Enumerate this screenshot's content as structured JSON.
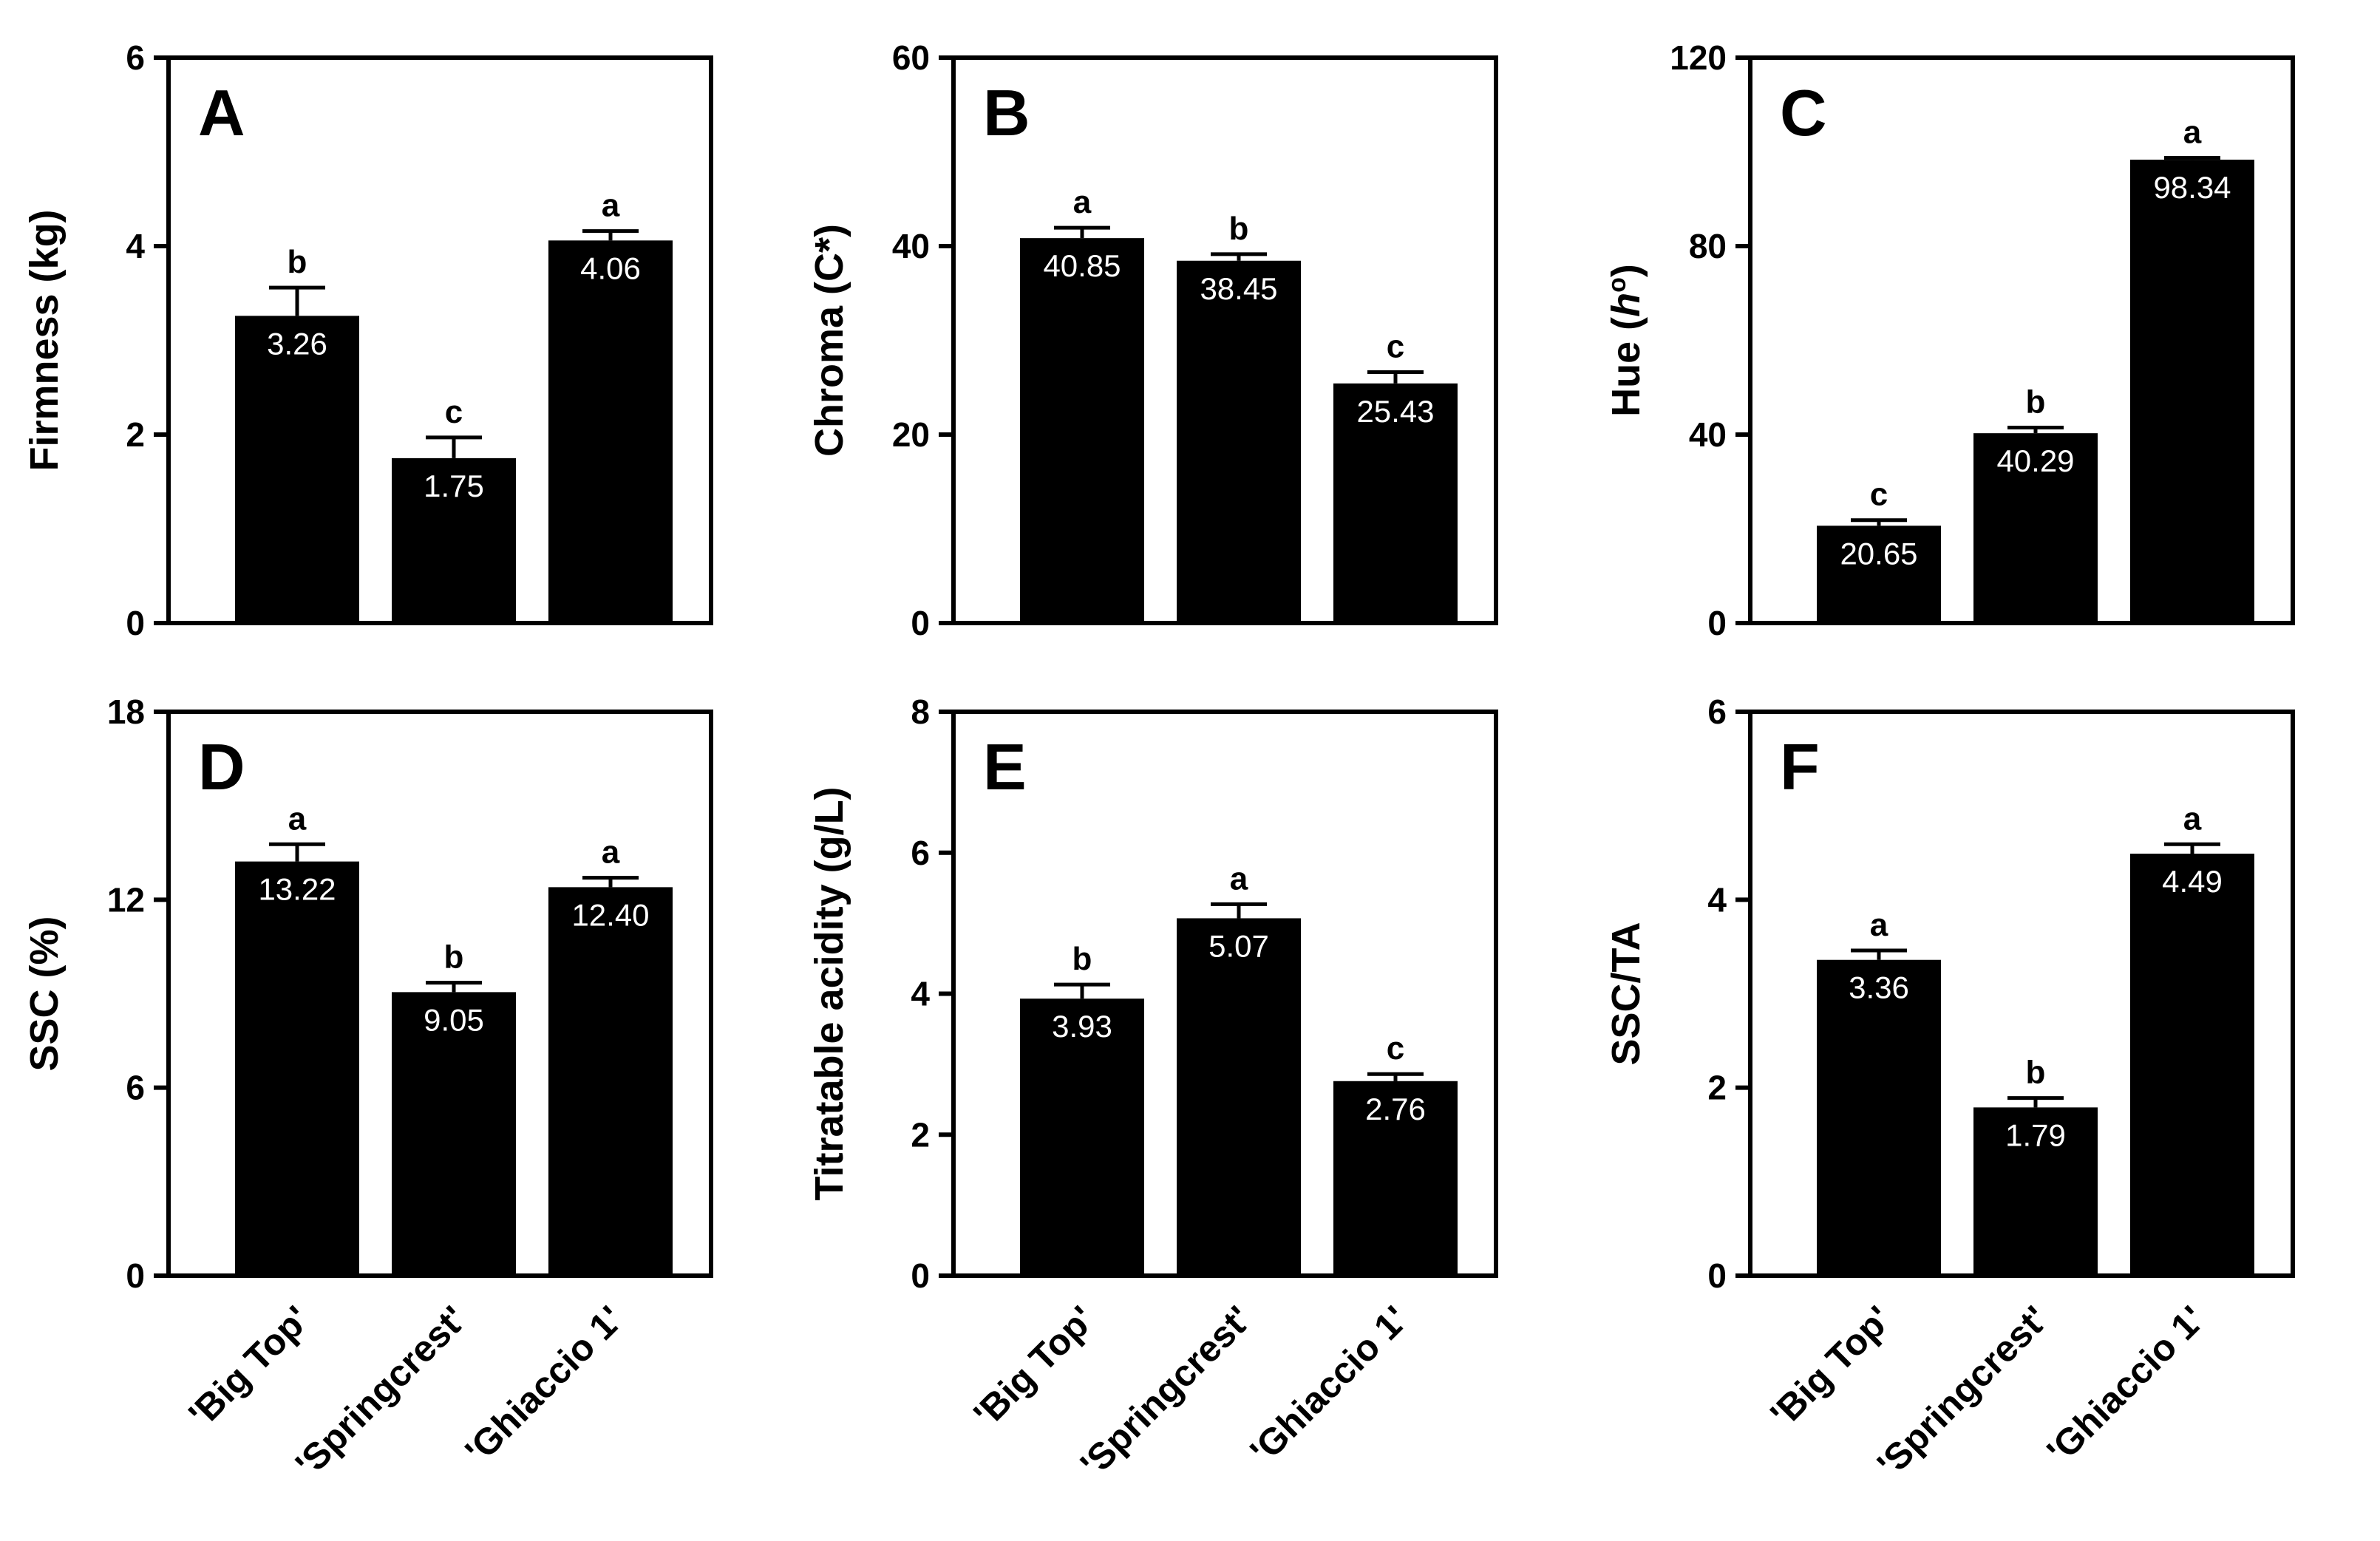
{
  "chart_data": [
    {
      "type": "bar",
      "panel": "A",
      "categories": [
        "'Big Top'",
        "'Springcrest'",
        "'Ghiaccio 1'"
      ],
      "values": [
        3.26,
        1.75,
        4.06
      ],
      "value_labels": [
        "3.26",
        "1.75",
        "4.06"
      ],
      "errors": [
        0.3,
        0.22,
        0.1
      ],
      "significance": [
        "b",
        "c",
        "a"
      ],
      "ylabel": "Firmness (kg)",
      "ylim": [
        0,
        6
      ],
      "yticks": [
        0,
        2,
        4,
        6
      ],
      "ytick_labels": [
        "0",
        "2",
        "4",
        "6"
      ],
      "show_xticklabels": false
    },
    {
      "type": "bar",
      "panel": "B",
      "categories": [
        "'Big Top'",
        "'Springcrest'",
        "'Ghiaccio 1'"
      ],
      "values": [
        40.85,
        38.45,
        25.43
      ],
      "value_labels": [
        "40.85",
        "38.45",
        "25.43"
      ],
      "errors": [
        1.1,
        0.7,
        1.2
      ],
      "significance": [
        "a",
        "b",
        "c"
      ],
      "ylabel": "Chroma (C*)",
      "ylim": [
        0,
        60
      ],
      "yticks": [
        0,
        20,
        40,
        60
      ],
      "ytick_labels": [
        "0",
        "20",
        "40",
        "60"
      ],
      "show_xticklabels": false
    },
    {
      "type": "bar",
      "panel": "C",
      "categories": [
        "'Big Top'",
        "'Springcrest'",
        "'Ghiaccio 1'"
      ],
      "values": [
        20.65,
        40.29,
        98.34
      ],
      "value_labels": [
        "20.65",
        "40.29",
        "98.34"
      ],
      "errors": [
        1.2,
        1.2,
        0.4
      ],
      "significance": [
        "c",
        "b",
        "a"
      ],
      "ylabel": "Hue (h°)",
      "ylabel_parts": [
        "Hue (",
        "h",
        "o",
        ")"
      ],
      "ylim": [
        0,
        120
      ],
      "yticks": [
        0,
        40,
        80,
        120
      ],
      "ytick_labels": [
        "0",
        "40",
        "80",
        "120"
      ],
      "show_xticklabels": false
    },
    {
      "type": "bar",
      "panel": "D",
      "categories": [
        "'Big Top'",
        "'Springcrest'",
        "'Ghiaccio 1'"
      ],
      "values": [
        13.22,
        9.05,
        12.4
      ],
      "value_labels": [
        "13.22",
        "9.05",
        "12.40"
      ],
      "errors": [
        0.55,
        0.3,
        0.3
      ],
      "significance": [
        "a",
        "b",
        "a"
      ],
      "ylabel": "SSC (%)",
      "ylim": [
        0,
        18
      ],
      "yticks": [
        0,
        6,
        12,
        18
      ],
      "ytick_labels": [
        "0",
        "6",
        "12",
        "18"
      ],
      "show_xticklabels": true
    },
    {
      "type": "bar",
      "panel": "E",
      "categories": [
        "'Big Top'",
        "'Springcrest'",
        "'Ghiaccio 1'"
      ],
      "values": [
        3.93,
        5.07,
        2.76
      ],
      "value_labels": [
        "3.93",
        "5.07",
        "2.76"
      ],
      "errors": [
        0.2,
        0.2,
        0.1
      ],
      "significance": [
        "b",
        "a",
        "c"
      ],
      "ylabel": "Titratable acidity (g/L)",
      "ylim": [
        0,
        8
      ],
      "yticks": [
        0,
        2,
        4,
        6,
        8
      ],
      "ytick_labels": [
        "0",
        "2",
        "4",
        "6",
        "8"
      ],
      "show_xticklabels": true
    },
    {
      "type": "bar",
      "panel": "F",
      "categories": [
        "'Big Top'",
        "'Springcrest'",
        "'Ghiaccio 1'"
      ],
      "values": [
        3.36,
        1.79,
        4.49
      ],
      "value_labels": [
        "3.36",
        "1.79",
        "4.49"
      ],
      "errors": [
        0.1,
        0.1,
        0.1
      ],
      "significance": [
        "a",
        "b",
        "a"
      ],
      "ylabel": "SSC/TA",
      "ylim": [
        0,
        6
      ],
      "yticks": [
        0,
        2,
        4,
        6
      ],
      "ytick_labels": [
        "0",
        "2",
        "4",
        "6"
      ],
      "show_xticklabels": true
    }
  ]
}
